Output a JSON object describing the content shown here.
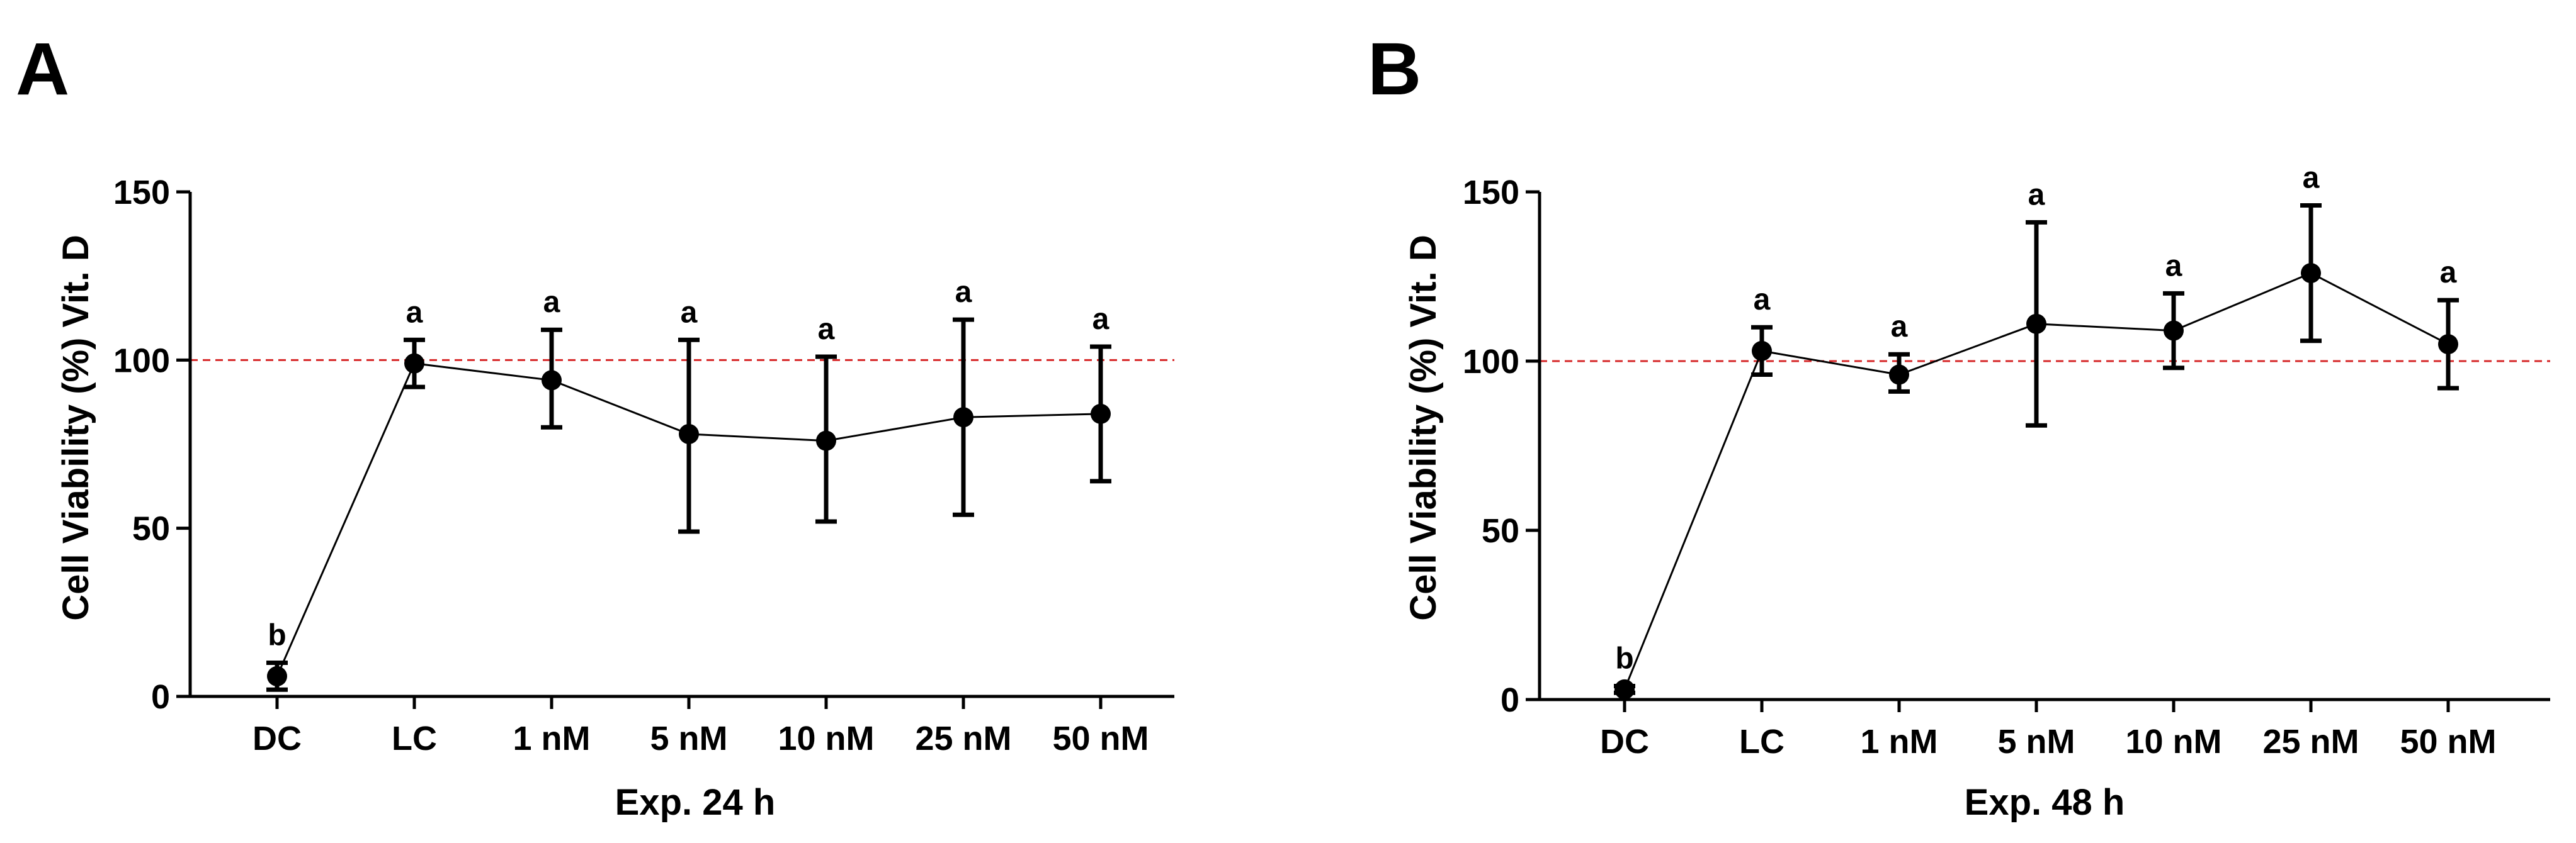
{
  "chart_data": [
    {
      "type": "line",
      "panel": "A",
      "xlabel": "Exp. 24 h",
      "ylabel": "Cell Viability (%) Vit. D",
      "ylim": [
        0,
        150
      ],
      "yticks": [
        0,
        50,
        100,
        150
      ],
      "reference_line": {
        "y": 100,
        "color": "#d62728",
        "style": "dashed"
      },
      "categories": [
        "DC",
        "LC",
        "1 nM",
        "5 nM",
        "10 nM",
        "25 nM",
        "50 nM"
      ],
      "values": [
        6,
        99,
        94,
        78,
        76,
        83,
        84
      ],
      "error_low": [
        2,
        92,
        80,
        49,
        52,
        54,
        64
      ],
      "error_high": [
        10,
        106,
        109,
        106,
        101,
        112,
        104
      ],
      "sig_labels": [
        "b",
        "a",
        "a",
        "a",
        "a",
        "a",
        "a"
      ]
    },
    {
      "type": "line",
      "panel": "B",
      "xlabel": "Exp. 48 h",
      "ylabel": "Cell Viability (%) Vit. D",
      "ylim": [
        0,
        150
      ],
      "yticks": [
        0,
        50,
        100,
        150
      ],
      "reference_line": {
        "y": 100,
        "color": "#d62728",
        "style": "dashed"
      },
      "categories": [
        "DC",
        "LC",
        "1 nM",
        "5 nM",
        "10 nM",
        "25 nM",
        "50 nM"
      ],
      "values": [
        3,
        103,
        96,
        111,
        109,
        126,
        105
      ],
      "error_low": [
        2,
        96,
        91,
        81,
        98,
        106,
        92
      ],
      "error_high": [
        4,
        110,
        102,
        141,
        120,
        146,
        118
      ],
      "sig_labels": [
        "b",
        "a",
        "a",
        "a",
        "a",
        "a",
        "a"
      ]
    }
  ]
}
